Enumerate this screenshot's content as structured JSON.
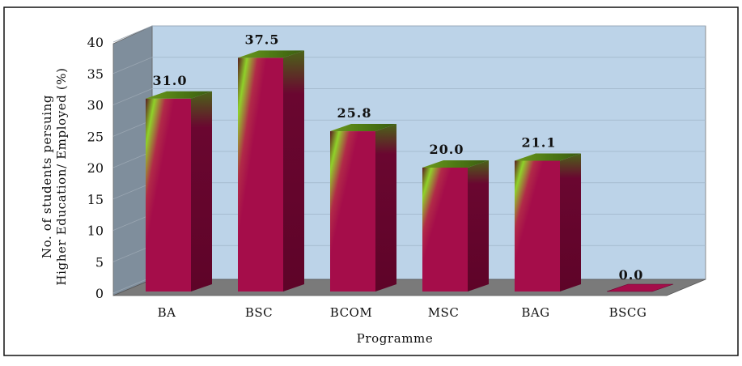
{
  "chart_data": {
    "type": "bar",
    "categories": [
      "BA",
      "BSC",
      "BCOM",
      "MSC",
      "BAG",
      "BSCG"
    ],
    "values": [
      31.0,
      37.5,
      25.8,
      20.0,
      21.1,
      0.0
    ],
    "value_labels": [
      "31.0",
      "37.5",
      "25.8",
      "20.0",
      "21.1",
      "0.0"
    ],
    "title": "",
    "xlabel": "Programme",
    "ylabel_lines": [
      "No. of students persuing",
      "Higher Education/ Employed (%)"
    ],
    "ylim": [
      0,
      40
    ],
    "yticks": [
      "0",
      "5",
      "10",
      "15",
      "20",
      "25",
      "30",
      "35",
      "40"
    ],
    "grid": true,
    "three_d": true,
    "legend": "none",
    "colors": {
      "bar_front": "#a50d4a",
      "bar_side": "#6a0630",
      "bar_highlight": "#8fd22a",
      "back_wall": "#bcd3e8",
      "side_wall": "#7f8e9c",
      "floor": "#7a7a7a"
    }
  }
}
